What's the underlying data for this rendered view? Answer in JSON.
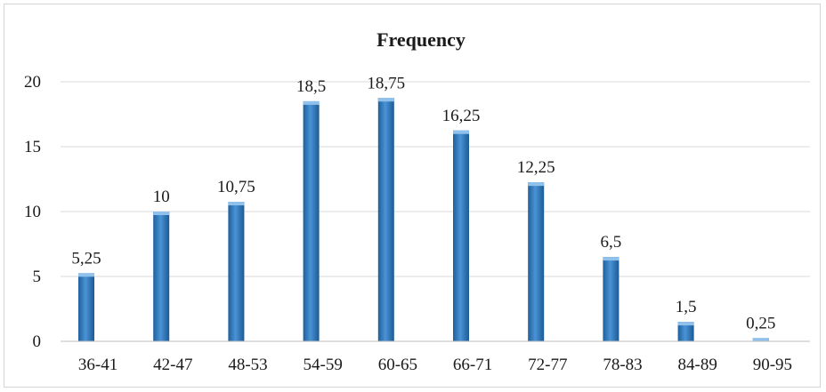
{
  "chart_data": {
    "type": "bar",
    "title": "Frequency",
    "xlabel": "",
    "ylabel": "",
    "categories": [
      "36-41",
      "42-47",
      "48-53",
      "54-59",
      "60-65",
      "66-71",
      "72-77",
      "78-83",
      "84-89",
      "90-95"
    ],
    "values": [
      5.25,
      10,
      10.75,
      18.5,
      18.75,
      16.25,
      12.25,
      6.5,
      1.5,
      0.25
    ],
    "data_labels": [
      "5,25",
      "10",
      "10,75",
      "18,5",
      "18,75",
      "16,25",
      "12,25",
      "6,5",
      "1,5",
      "0,25"
    ],
    "ylim": [
      0,
      20
    ],
    "yticks": [
      0,
      5,
      10,
      15,
      20
    ],
    "grid": true,
    "legend": "none",
    "bar_color": "#2e74b5",
    "bar_highlight": "#8fc1ec"
  }
}
